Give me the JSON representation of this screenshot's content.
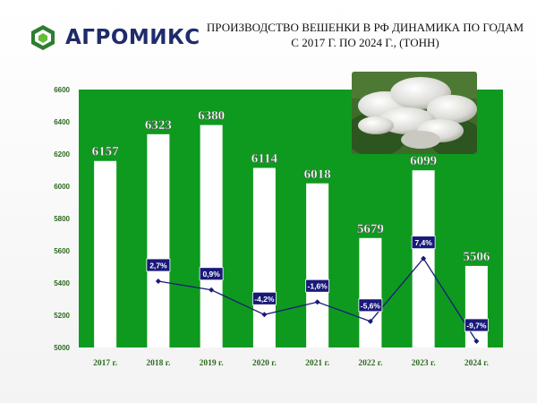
{
  "brand": {
    "name": "АГРОМИКС",
    "logo_icon": "agromix-logo-icon",
    "color": "#1f2c6b"
  },
  "title": {
    "line1": "ПРОИЗВОДСТВО ВЕШЕНКИ В РФ ДИНАМИКА ПО ГОДАМ",
    "line2": "С 2017 Г. ПО 2024 Г., (ТОНН)"
  },
  "photo": {
    "icon": "oyster-mushroom-photo"
  },
  "colors": {
    "plot_bg": "#0e9a1e",
    "bar": "#ffffff",
    "line": "#1a1a7a",
    "label_bg": "#19197a",
    "axis_text": "#2b6a1e"
  },
  "chart_data": {
    "type": "bar",
    "categories": [
      "2017 г.",
      "2018 г.",
      "2019 г.",
      "2020 г.",
      "2021 г.",
      "2022 г.",
      "2023 г.",
      "2024 г."
    ],
    "values": [
      6157,
      6323,
      6380,
      6114,
      6018,
      5679,
      6099,
      5506
    ],
    "value_labels": [
      "6157",
      "6323",
      "6380",
      "6114",
      "6018",
      "5679",
      "6099",
      "5506"
    ],
    "ylim": [
      5000,
      6600
    ],
    "yticks": [
      5000,
      5200,
      5400,
      5600,
      5800,
      6000,
      6200,
      6400,
      6600
    ],
    "growth_labels": [
      "2,7%",
      "0,9%",
      "-4,2%",
      "-1,6%",
      "-5,6%",
      "7,4%",
      "-9,7%"
    ],
    "growth_values": [
      2.7,
      0.9,
      -4.2,
      -1.6,
      -5.6,
      7.4,
      -9.7
    ],
    "grid": false
  }
}
